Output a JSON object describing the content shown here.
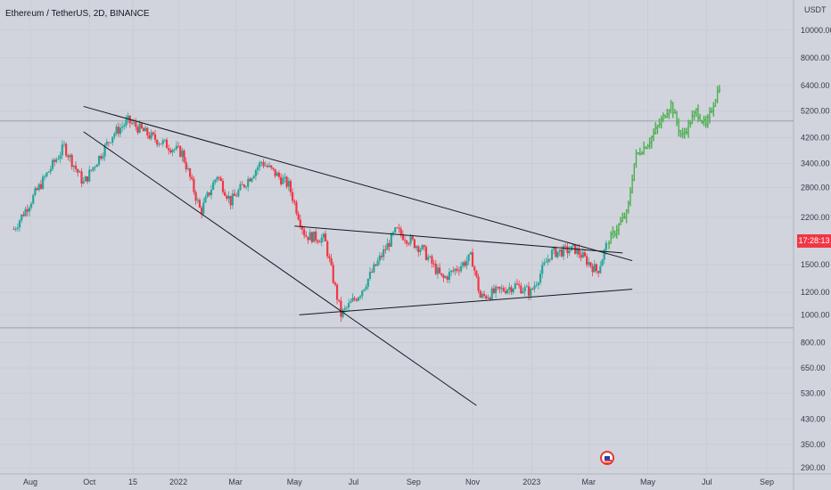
{
  "header": {
    "title": "Ethereum / TetherUS, 2D, BINANCE"
  },
  "price_axis": {
    "currency": "USDT",
    "live_price_tag": "17:28:13",
    "live_price_tag_color": "#f23645"
  },
  "colors": {
    "up": "#26a69a",
    "down": "#f23645",
    "projection": "#4caf50",
    "background": "#d1d4dc",
    "trendline": "#131722"
  },
  "chart_data": {
    "type": "candlestick",
    "title": "Ethereum / TetherUS, 2D, BINANCE",
    "y_scale": "log",
    "ylim": [
      270,
      13000
    ],
    "y_ticks": [
      "10000.00",
      "8000.00",
      "6400.00",
      "5200.00",
      "4200.00",
      "3400.00",
      "2800.00",
      "2200.00",
      "1500.00",
      "1200.00",
      "1000.00",
      "800.00",
      "650.00",
      "530.00",
      "430.00",
      "350.00",
      "290.00"
    ],
    "y_tick_values": [
      10000,
      8000,
      6400,
      5200,
      4200,
      3400,
      2800,
      2200,
      1500,
      1200,
      1000,
      800,
      650,
      530,
      430,
      350,
      290
    ],
    "x_ticks": [
      "Aug",
      "Oct",
      "15",
      "2022",
      "Mar",
      "May",
      "Jul",
      "Sep",
      "Nov",
      "2023",
      "Mar",
      "May",
      "Jul",
      "Sep"
    ],
    "x_tick_dates": [
      "2021-08-01",
      "2021-10-01",
      "2021-11-15",
      "2022-01-01",
      "2022-03-01",
      "2022-05-01",
      "2022-07-01",
      "2022-09-01",
      "2022-11-01",
      "2023-01-01",
      "2023-03-01",
      "2023-05-01",
      "2023-07-01",
      "2023-09-01"
    ],
    "key_prices": [
      {
        "date": "2021-07-15",
        "price": 2000
      },
      {
        "date": "2021-08-20",
        "price": 3200
      },
      {
        "date": "2021-09-05",
        "price": 3900
      },
      {
        "date": "2021-09-25",
        "price": 2900
      },
      {
        "date": "2021-10-25",
        "price": 4300
      },
      {
        "date": "2021-11-10",
        "price": 4800
      },
      {
        "date": "2021-12-05",
        "price": 4200
      },
      {
        "date": "2022-01-05",
        "price": 3700
      },
      {
        "date": "2022-01-24",
        "price": 2300
      },
      {
        "date": "2022-02-10",
        "price": 3100
      },
      {
        "date": "2022-02-24",
        "price": 2500
      },
      {
        "date": "2022-03-28",
        "price": 3450
      },
      {
        "date": "2022-04-25",
        "price": 2850
      },
      {
        "date": "2022-05-12",
        "price": 1900
      },
      {
        "date": "2022-06-01",
        "price": 1850
      },
      {
        "date": "2022-06-18",
        "price": 1000
      },
      {
        "date": "2022-07-08",
        "price": 1200
      },
      {
        "date": "2022-08-14",
        "price": 1980
      },
      {
        "date": "2022-09-10",
        "price": 1700
      },
      {
        "date": "2022-10-01",
        "price": 1330
      },
      {
        "date": "2022-10-31",
        "price": 1600
      },
      {
        "date": "2022-11-09",
        "price": 1150
      },
      {
        "date": "2022-12-15",
        "price": 1270
      },
      {
        "date": "2022-12-31",
        "price": 1200
      },
      {
        "date": "2023-01-21",
        "price": 1650
      },
      {
        "date": "2023-02-15",
        "price": 1700
      },
      {
        "date": "2023-03-10",
        "price": 1420
      },
      {
        "date": "2023-03-20",
        "price": 1780
      }
    ],
    "projection": [
      {
        "date": "2023-03-20",
        "price": 1780
      },
      {
        "date": "2023-04-10",
        "price": 2300
      },
      {
        "date": "2023-04-18",
        "price": 3600
      },
      {
        "date": "2023-05-01",
        "price": 4000
      },
      {
        "date": "2023-05-25",
        "price": 5500
      },
      {
        "date": "2023-06-05",
        "price": 4200
      },
      {
        "date": "2023-06-20",
        "price": 5200
      },
      {
        "date": "2023-06-30",
        "price": 4600
      },
      {
        "date": "2023-07-15",
        "price": 6500
      }
    ],
    "horizontal_lines": [
      4800,
      900
    ],
    "trendlines": [
      {
        "name": "upper descending",
        "from": {
          "date": "2021-09-25",
          "price": 5400
        },
        "to": {
          "date": "2023-04-15",
          "price": 1550
        }
      },
      {
        "name": "lower descending",
        "from": {
          "date": "2021-09-25",
          "price": 4400
        },
        "to": {
          "date": "2022-11-05",
          "price": 480
        }
      },
      {
        "name": "triangle upper",
        "from": {
          "date": "2022-05-01",
          "price": 2050
        },
        "to": {
          "date": "2023-04-05",
          "price": 1650
        }
      },
      {
        "name": "triangle lower",
        "from": {
          "date": "2022-05-06",
          "price": 1000
        },
        "to": {
          "date": "2023-04-15",
          "price": 1230
        }
      }
    ],
    "grid": true
  }
}
